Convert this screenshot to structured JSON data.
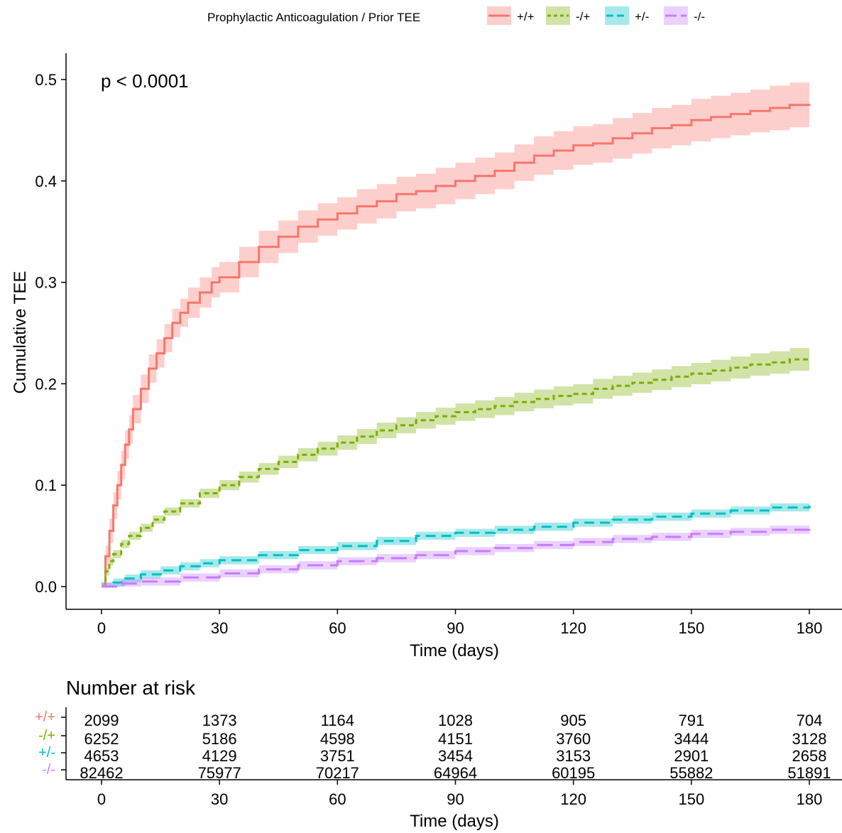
{
  "legend": {
    "title": "Prophylactic Anticoagulation / Prior TEE"
  },
  "annotation": {
    "pvalue": "p < 0.0001"
  },
  "chart_data": {
    "type": "line",
    "step": true,
    "confidence_bands": true,
    "xlabel": "Time (days)",
    "ylabel": "Cumulative TEE",
    "xlim": [
      0,
      180
    ],
    "ylim": [
      0,
      0.5
    ],
    "x_ticks": [
      0,
      30,
      60,
      90,
      120,
      150,
      180
    ],
    "y_ticks": [
      0.0,
      0.1,
      0.2,
      0.3,
      0.4,
      0.5
    ],
    "y_tick_labels": [
      "0.0",
      "0.1",
      "0.2",
      "0.3",
      "0.4",
      "0.5"
    ],
    "grid": false,
    "legend_position": "top",
    "series": [
      {
        "name": "+/+",
        "color": "#F8766D",
        "dash": "solid",
        "x": [
          0,
          1,
          2,
          3,
          4,
          5,
          6,
          7,
          8,
          10,
          12,
          14,
          16,
          18,
          20,
          22,
          25,
          28,
          30,
          35,
          40,
          45,
          50,
          55,
          60,
          65,
          70,
          75,
          80,
          85,
          90,
          95,
          100,
          105,
          110,
          115,
          120,
          125,
          130,
          135,
          140,
          145,
          150,
          155,
          160,
          165,
          170,
          175,
          180
        ],
        "y": [
          0,
          0.03,
          0.055,
          0.08,
          0.1,
          0.12,
          0.14,
          0.155,
          0.175,
          0.195,
          0.215,
          0.23,
          0.245,
          0.26,
          0.27,
          0.28,
          0.29,
          0.3,
          0.305,
          0.32,
          0.335,
          0.345,
          0.355,
          0.362,
          0.368,
          0.375,
          0.38,
          0.387,
          0.39,
          0.395,
          0.4,
          0.405,
          0.41,
          0.418,
          0.425,
          0.43,
          0.435,
          0.437,
          0.442,
          0.447,
          0.452,
          0.455,
          0.46,
          0.463,
          0.466,
          0.469,
          0.472,
          0.475,
          0.476
        ],
        "ci_halfwidth": [
          0,
          0.01,
          0.012,
          0.013,
          0.014,
          0.014,
          0.014,
          0.014,
          0.014,
          0.014,
          0.014,
          0.014,
          0.014,
          0.014,
          0.014,
          0.015,
          0.015,
          0.015,
          0.015,
          0.015,
          0.016,
          0.016,
          0.016,
          0.016,
          0.016,
          0.017,
          0.017,
          0.017,
          0.017,
          0.018,
          0.018,
          0.018,
          0.018,
          0.018,
          0.019,
          0.019,
          0.019,
          0.019,
          0.02,
          0.02,
          0.02,
          0.02,
          0.021,
          0.021,
          0.021,
          0.021,
          0.022,
          0.022,
          0.022
        ]
      },
      {
        "name": "-/+",
        "color": "#7CAE00",
        "dash": "dotted",
        "x": [
          0,
          1,
          2,
          3,
          5,
          7,
          10,
          13,
          16,
          20,
          25,
          30,
          35,
          40,
          45,
          50,
          55,
          60,
          65,
          70,
          75,
          80,
          85,
          90,
          95,
          100,
          105,
          110,
          115,
          120,
          125,
          130,
          135,
          140,
          145,
          150,
          155,
          160,
          165,
          170,
          175,
          180
        ],
        "y": [
          0,
          0.015,
          0.025,
          0.032,
          0.042,
          0.05,
          0.058,
          0.066,
          0.074,
          0.082,
          0.092,
          0.1,
          0.108,
          0.116,
          0.123,
          0.13,
          0.136,
          0.142,
          0.148,
          0.154,
          0.159,
          0.164,
          0.168,
          0.172,
          0.175,
          0.178,
          0.182,
          0.185,
          0.188,
          0.19,
          0.195,
          0.198,
          0.201,
          0.204,
          0.207,
          0.21,
          0.213,
          0.216,
          0.219,
          0.221,
          0.224,
          0.226
        ]
      },
      {
        "name": "+/-",
        "color": "#00BFC4",
        "dash": "dashed",
        "x": [
          0,
          3,
          6,
          10,
          15,
          20,
          25,
          30,
          40,
          50,
          60,
          70,
          80,
          90,
          100,
          110,
          120,
          130,
          140,
          150,
          160,
          170,
          180
        ],
        "y": [
          0,
          0.004,
          0.008,
          0.012,
          0.016,
          0.02,
          0.023,
          0.026,
          0.031,
          0.036,
          0.04,
          0.045,
          0.05,
          0.053,
          0.056,
          0.059,
          0.063,
          0.066,
          0.069,
          0.072,
          0.075,
          0.078,
          0.08
        ]
      },
      {
        "name": "-/-",
        "color": "#C77CFF",
        "dash": "longdash",
        "x": [
          0,
          5,
          10,
          20,
          30,
          40,
          50,
          60,
          70,
          80,
          90,
          100,
          110,
          120,
          130,
          140,
          150,
          160,
          170,
          180
        ],
        "y": [
          0,
          0.003,
          0.005,
          0.009,
          0.013,
          0.017,
          0.021,
          0.025,
          0.028,
          0.031,
          0.035,
          0.038,
          0.041,
          0.044,
          0.047,
          0.049,
          0.052,
          0.054,
          0.056,
          0.058
        ]
      }
    ]
  },
  "risk_table": {
    "title": "Number at risk",
    "xlabel": "Time (days)",
    "times": [
      0,
      30,
      60,
      90,
      120,
      150,
      180
    ],
    "rows": [
      {
        "label": "+/+",
        "color": "#F8766D",
        "values": [
          "2099",
          "1373",
          "1164",
          "1028",
          "905",
          "791",
          "704"
        ]
      },
      {
        "label": "-/+",
        "color": "#7CAE00",
        "values": [
          "6252",
          "5186",
          "4598",
          "4151",
          "3760",
          "3444",
          "3128"
        ]
      },
      {
        "label": "+/-",
        "color": "#00BFC4",
        "values": [
          "4653",
          "4129",
          "3751",
          "3454",
          "3153",
          "2901",
          "2658"
        ]
      },
      {
        "label": "-/-",
        "color": "#C77CFF",
        "values": [
          "82462",
          "75977",
          "70217",
          "64964",
          "60195",
          "55882",
          "51891"
        ]
      }
    ]
  }
}
